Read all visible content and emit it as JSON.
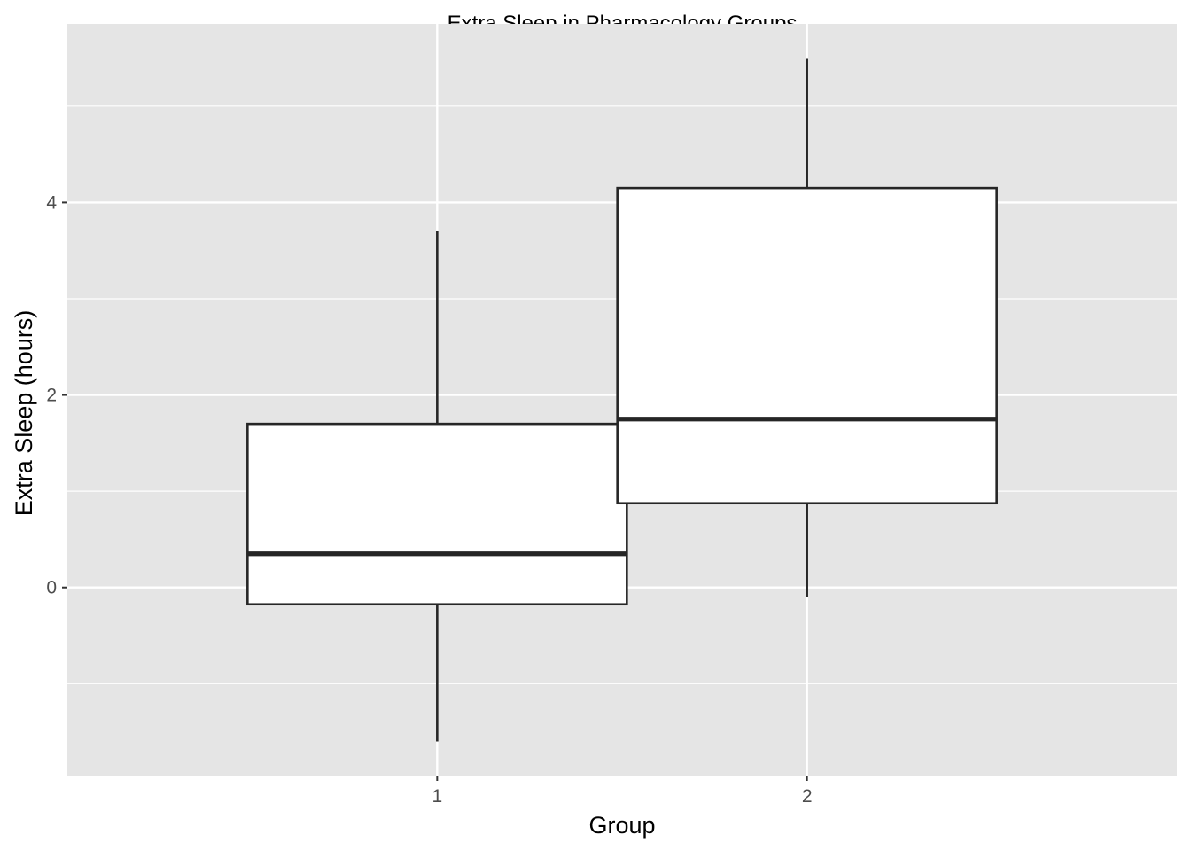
{
  "chart_data": {
    "type": "boxplot",
    "title": "Extra Sleep in Pharmacology Groups",
    "xlabel": "Group",
    "ylabel": "Extra Sleep (hours)",
    "categories": [
      "1",
      "2"
    ],
    "boxes": [
      {
        "category": "1",
        "whisker_low": -1.6,
        "q1": -0.175,
        "median": 0.35,
        "q3": 1.7,
        "whisker_high": 3.7
      },
      {
        "category": "2",
        "whisker_low": -0.1,
        "q1": 0.875,
        "median": 1.75,
        "q3": 4.15,
        "whisker_high": 5.5
      }
    ],
    "ylim": [
      -1.955,
      5.855
    ],
    "y_major_ticks": [
      0,
      2,
      4
    ],
    "y_minor_grid": [
      -1,
      1,
      3,
      5
    ],
    "grid": true,
    "background": "#e5e5e5",
    "box_fill": "#ffffff",
    "line_color": "#262626"
  }
}
